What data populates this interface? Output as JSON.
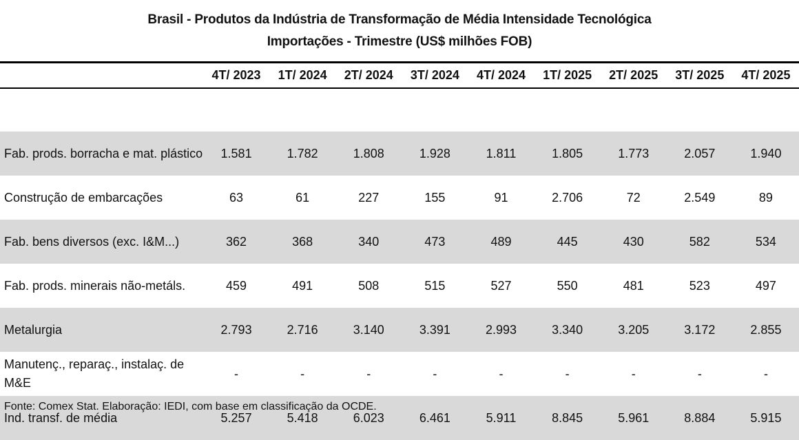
{
  "title": {
    "line1": "Brasil - Produtos da Indústria de Transformação de Média Intensidade Tecnológica",
    "line2": "Importações - Trimestre (US$ milhões FOB)"
  },
  "table": {
    "columns": [
      "4T/ 2023",
      "1T/ 2024",
      "2T/ 2024",
      "3T/ 2024",
      "4T/ 2024",
      "1T/ 2025",
      "2T/ 2025",
      "3T/ 2025",
      "4T/ 2025"
    ],
    "rows": [
      {
        "label": "Fab. prods. borracha e mat. plástico",
        "shaded": true,
        "values": [
          "1.581",
          "1.782",
          "1.808",
          "1.928",
          "1.811",
          "1.805",
          "1.773",
          "2.057",
          "1.940"
        ]
      },
      {
        "label": "Construção de embarcações",
        "shaded": false,
        "values": [
          "63",
          "61",
          "227",
          "155",
          "91",
          "2.706",
          "72",
          "2.549",
          "89"
        ]
      },
      {
        "label": "Fab. bens diversos (exc. I&M...)",
        "shaded": true,
        "values": [
          "362",
          "368",
          "340",
          "473",
          "489",
          "445",
          "430",
          "582",
          "534"
        ]
      },
      {
        "label": "Fab. prods. minerais não-metáls.",
        "shaded": false,
        "values": [
          "459",
          "491",
          "508",
          "515",
          "527",
          "550",
          "481",
          "523",
          "497"
        ]
      },
      {
        "label": "Metalurgia",
        "shaded": true,
        "values": [
          "2.793",
          "2.716",
          "3.140",
          "3.391",
          "2.993",
          "3.340",
          "3.205",
          "3.172",
          "2.855"
        ]
      },
      {
        "label": "Manutenç., reparaç., instalaç. de M&E",
        "shaded": false,
        "values": [
          "-",
          "-",
          "-",
          "-",
          "-",
          "-",
          "-",
          "-",
          "-"
        ]
      },
      {
        "label": "Ind. transf. de média",
        "shaded": true,
        "values": [
          "5.257",
          "5.418",
          "6.023",
          "6.461",
          "5.911",
          "8.845",
          "5.961",
          "8.884",
          "5.915"
        ]
      }
    ]
  },
  "footnote": "Fonte: Comex Stat. Elaboração: IEDI, com base em classificação da OCDE.",
  "colors": {
    "shaded_row": "#d9d9d9",
    "rule": "#000000"
  }
}
